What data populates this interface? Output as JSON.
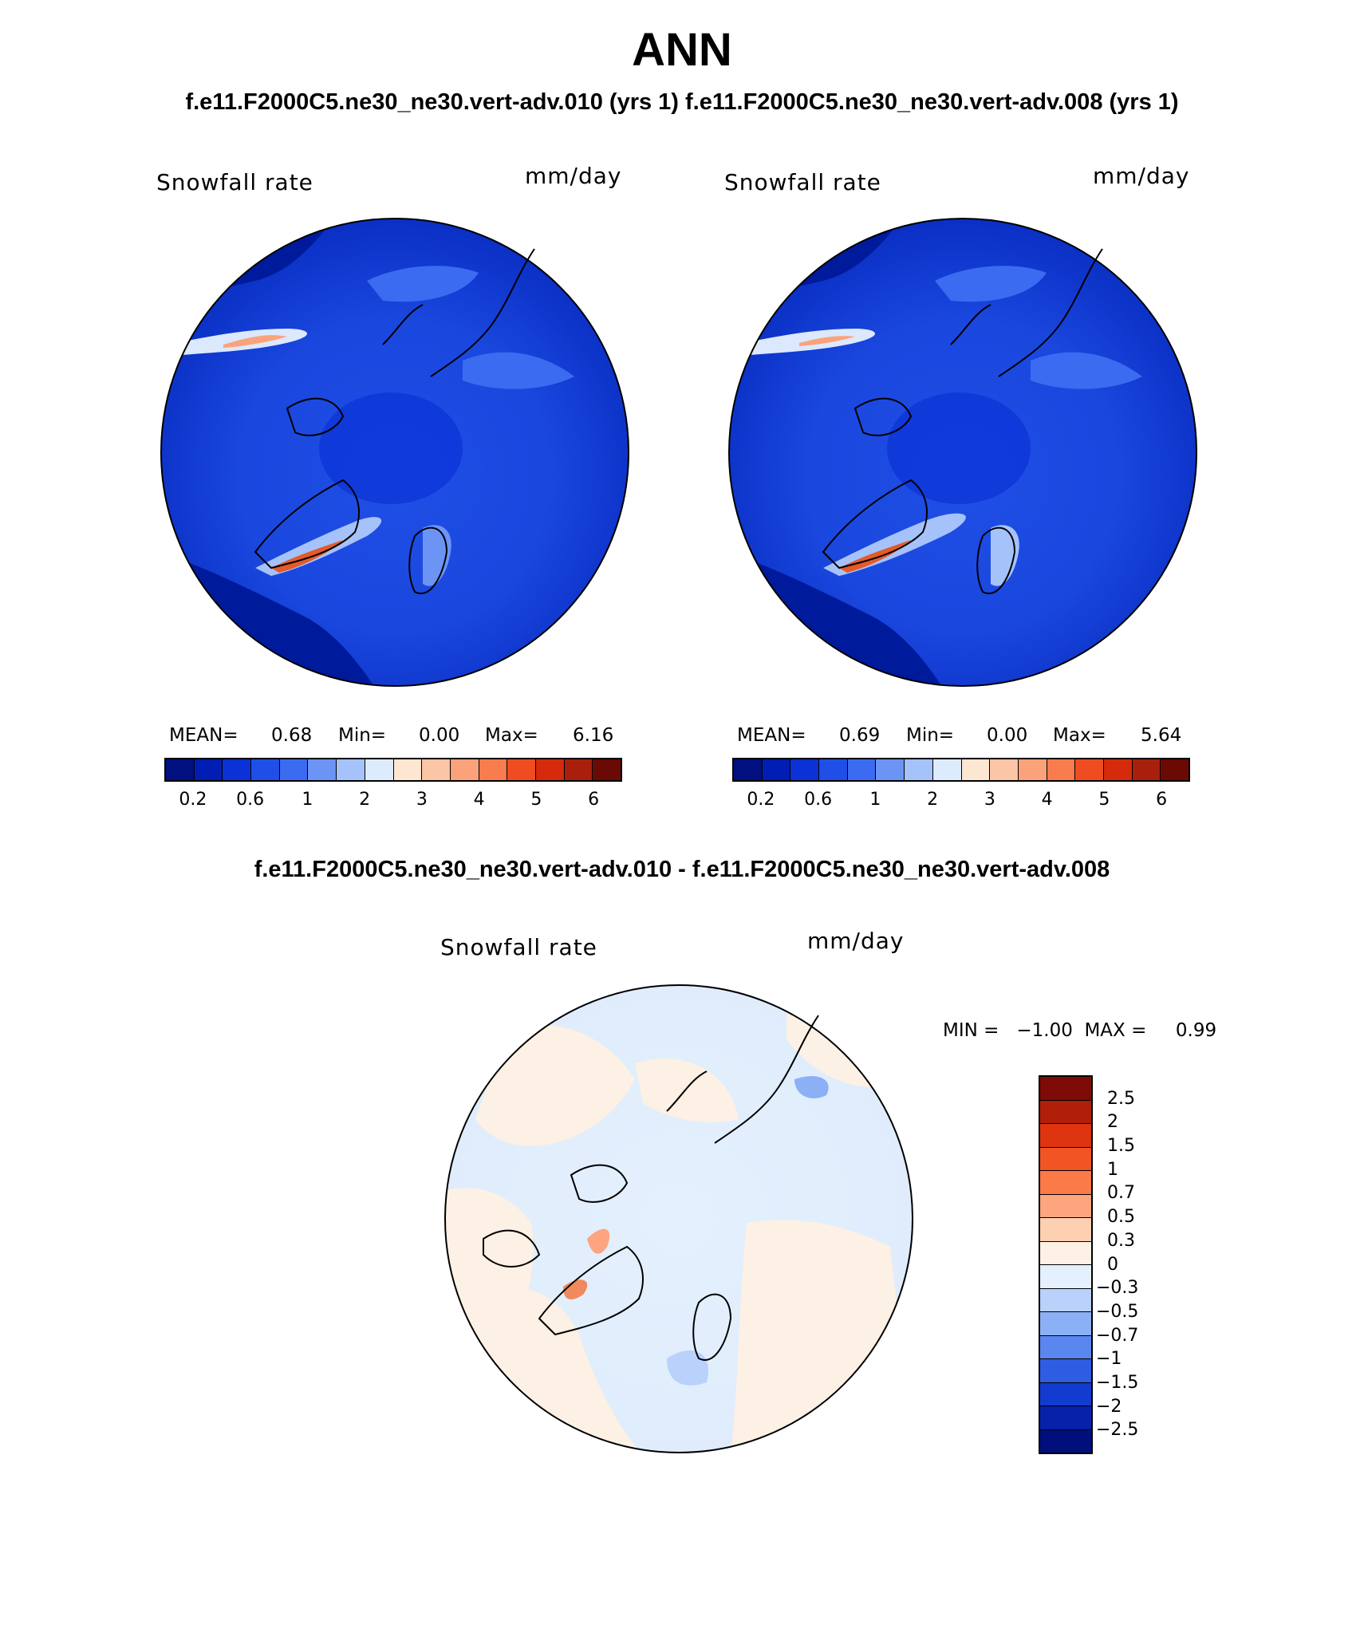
{
  "title": "ANN",
  "subtitle": "f.e11.F2000C5.ne30_ne30.vert-adv.010 (yrs 1)  f.e11.F2000C5.ne30_ne30.vert-adv.008 (yrs 1)",
  "panels": [
    {
      "variable": "Snowfall rate",
      "units": "mm/day",
      "mean_label": "MEAN=",
      "mean_value": "0.68",
      "min_label": "Min=",
      "min_value": "0.00",
      "max_label": "Max=",
      "max_value": "6.16"
    },
    {
      "variable": "Snowfall rate",
      "units": "mm/day",
      "mean_label": "MEAN=",
      "mean_value": "0.69",
      "min_label": "Min=",
      "min_value": "0.00",
      "max_label": "Max=",
      "max_value": "5.64"
    }
  ],
  "colorbar": {
    "colors": [
      "#00107f",
      "#001eb4",
      "#0a32d6",
      "#1f4fe6",
      "#3b6bf0",
      "#6b94f5",
      "#a6c2fa",
      "#dcebfd",
      "#fde6d2",
      "#fcc5a5",
      "#fba27a",
      "#f87c4d",
      "#ef4d20",
      "#d62a0c",
      "#a8200b",
      "#6b0a05"
    ],
    "tick_labels": [
      "0.2",
      "0.6",
      "1",
      "2",
      "3",
      "4",
      "5",
      "6"
    ]
  },
  "difference": {
    "title": "f.e11.F2000C5.ne30_ne30.vert-adv.010 - f.e11.F2000C5.ne30_ne30.vert-adv.008",
    "variable": "Snowfall rate",
    "units": "mm/day",
    "min_max_text": "MIN =   −1.00  MAX =     0.99",
    "colors": [
      "#7e0b05",
      "#b11e0a",
      "#de3410",
      "#f25424",
      "#fb7a48",
      "#fca57e",
      "#fdd0b2",
      "#fdf0e4",
      "#e4f0fd",
      "#b9d1fb",
      "#8cb0f6",
      "#5a87ef",
      "#2e5de4",
      "#123ccf",
      "#0721a8",
      "#000f7c"
    ],
    "tick_labels": [
      "2.5",
      "2",
      "1.5",
      "1",
      "0.7",
      "0.5",
      "0.3",
      "0",
      "−0.3",
      "−0.5",
      "−0.7",
      "−1",
      "−1.5",
      "−2",
      "−2.5"
    ]
  }
}
